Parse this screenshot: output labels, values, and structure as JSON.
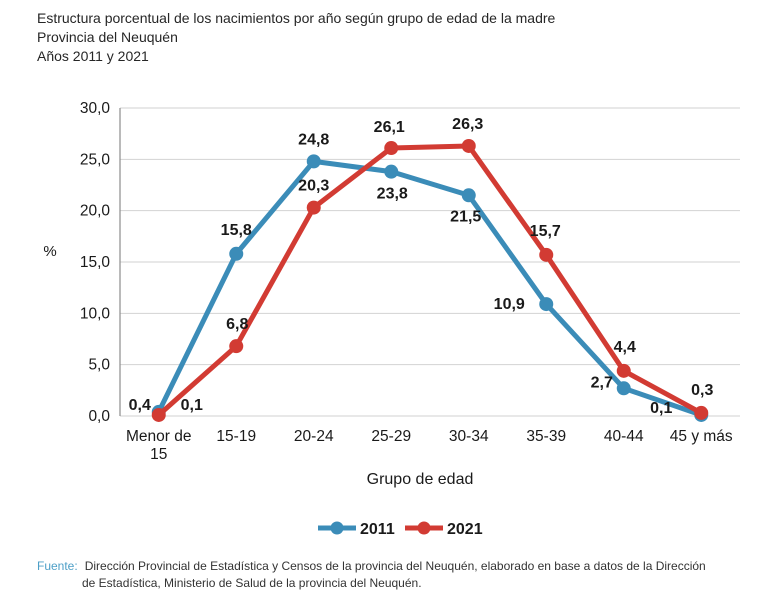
{
  "chart_data": {
    "type": "line",
    "title": "Estructura porcentual de los nacimientos por año según grupo de edad de la madre",
    "subtitle": "Provincia del Neuquén",
    "subtitle2": "Años 2011 y 2021",
    "xlabel": "Grupo de edad",
    "ylabel": "%",
    "categories": [
      "Menor de\n15",
      "15-19",
      "20-24",
      "25-29",
      "30-34",
      "35-39",
      "40-44",
      "45 y más"
    ],
    "series": [
      {
        "name": "2011",
        "color": "#3B8CB8",
        "values": [
          0.4,
          15.8,
          24.8,
          23.8,
          21.5,
          10.9,
          2.7,
          0.1
        ]
      },
      {
        "name": "2021",
        "color": "#D23B33",
        "values": [
          0.1,
          6.8,
          20.3,
          26.1,
          26.3,
          15.7,
          4.4,
          0.3
        ]
      }
    ],
    "ylim": [
      0,
      30
    ],
    "ytick_step": 5,
    "decimal_separator": ",",
    "grid": true,
    "legend_position": "bottom"
  },
  "footer": {
    "source_label": "Fuente:",
    "source_text": "Dirección Provincial de Estadística y Censos de la provincia del Neuquén, elaborado en base a datos de la Dirección de Estadística, Ministerio de Salud de la provincia del Neuquén."
  },
  "colors": {
    "gridline": "#D2D2D2",
    "axis_line": "#8C8C8C",
    "text": "#1A1A1A",
    "source_label": "#4D9FC7"
  }
}
